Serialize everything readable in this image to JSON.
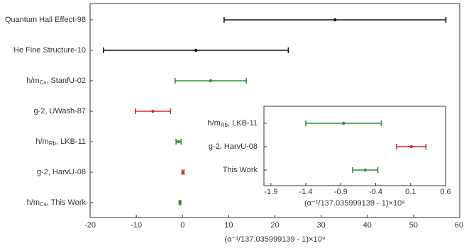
{
  "chart_data": [
    {
      "type": "errorbar",
      "categories": [
        "Quantum Hall Effect-98",
        "He Fine Structure-10",
        "h/mCs, StanfU-02",
        "g-2, UWash-87",
        "h/mRb, LKB-11",
        "g-2, HarvU-08",
        "h/mCs, This Work"
      ],
      "values": [
        33.0,
        2.9,
        6.1,
        -6.4,
        -0.86,
        0.11,
        -0.55
      ],
      "errors": [
        24.0,
        20.0,
        7.7,
        3.8,
        0.54,
        0.21,
        0.18
      ],
      "colors": [
        "#111111",
        "#111111",
        "#2e8b3e",
        "#d62728",
        "#2e8b3e",
        "#d62728",
        "#2e8b3e"
      ],
      "xlabel": "(α⁻¹/137.035999139 - 1)×10⁹",
      "xlim": [
        -20,
        60
      ],
      "xticks": [
        -20,
        -10,
        0,
        10,
        20,
        30,
        40,
        50,
        60
      ]
    },
    {
      "type": "errorbar",
      "categories": [
        "h/mRb, LKB-11",
        "g-2, HarvU-08",
        "This Work"
      ],
      "values": [
        -0.86,
        0.11,
        -0.55
      ],
      "errors": [
        0.54,
        0.21,
        0.18
      ],
      "colors": [
        "#2e8b3e",
        "#d62728",
        "#2e8b3e"
      ],
      "xlabel": "(α⁻¹/137.035999139 - 1)×10⁹",
      "xlim": [
        -2.0,
        0.6
      ],
      "xticks": [
        -1.9,
        -1.4,
        -0.9,
        -0.4,
        0.1,
        0.6
      ]
    }
  ]
}
